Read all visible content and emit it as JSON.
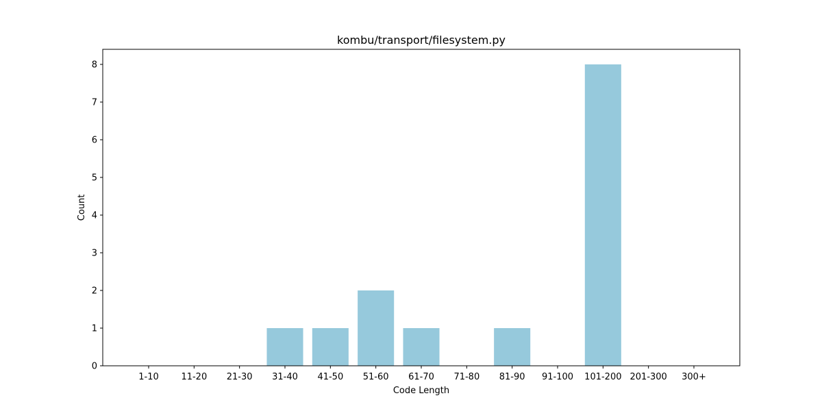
{
  "chart_data": {
    "type": "bar",
    "title": "kombu/transport/filesystem.py",
    "xlabel": "Code Length",
    "ylabel": "Count",
    "categories": [
      "1-10",
      "11-20",
      "21-30",
      "31-40",
      "41-50",
      "51-60",
      "61-70",
      "71-80",
      "81-90",
      "91-100",
      "101-200",
      "201-300",
      "300+"
    ],
    "values": [
      0,
      0,
      0,
      1,
      1,
      2,
      1,
      0,
      1,
      0,
      8,
      0,
      0
    ],
    "yticks": [
      "0",
      "1",
      "2",
      "3",
      "4",
      "5",
      "6",
      "7",
      "8"
    ],
    "ylim": [
      0,
      8.4
    ],
    "grid": false,
    "bar_color": "#96c9dc"
  }
}
